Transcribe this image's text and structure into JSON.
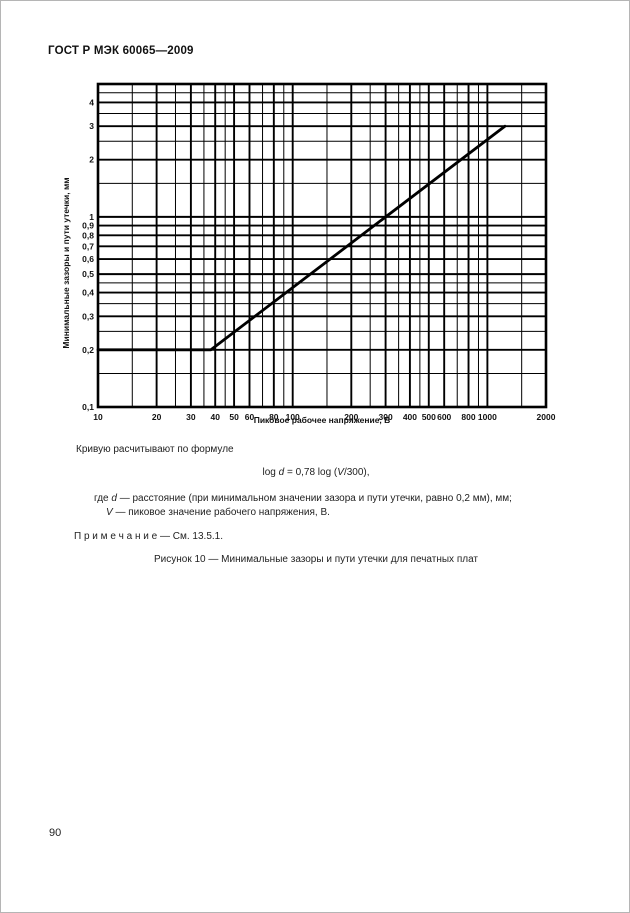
{
  "page": {
    "header": "ГОСТ Р МЭК 60065—2009",
    "page_number": "90"
  },
  "chart_data": {
    "type": "line",
    "title": "",
    "x_axis": {
      "label": "Пиковое рабочее напряжение, В",
      "scale": "log",
      "min": 10,
      "max": 2000,
      "ticks": [
        10,
        20,
        30,
        40,
        50,
        60,
        80,
        100,
        200,
        300,
        400,
        500,
        600,
        800,
        1000,
        2000
      ],
      "tick_labels": [
        "10",
        "20",
        "30",
        "40",
        "50",
        "60",
        "80",
        "100",
        "200",
        "300",
        "400",
        "500",
        "600",
        "800",
        "1000",
        "2000"
      ],
      "minor_gridlines": [
        15,
        25,
        35,
        45,
        70,
        90,
        150,
        250,
        350,
        450,
        700,
        900,
        1500
      ]
    },
    "y_axis": {
      "label": "Минимальные зазоры и пути утечки, мм",
      "scale": "log",
      "min": 0.1,
      "max": 5,
      "ticks": [
        0.1,
        0.2,
        0.3,
        0.4,
        0.5,
        0.6,
        0.7,
        0.8,
        0.9,
        1,
        2,
        3,
        4
      ],
      "tick_labels": [
        "0,1",
        "0,2",
        "0,3",
        "0,4",
        "0,5",
        "0,6",
        "0,7",
        "0,8",
        "0,9",
        "1",
        "2",
        "3",
        "4"
      ],
      "minor_gridlines": [
        0.15,
        0.25,
        0.35,
        0.45,
        1.5,
        2.5,
        3.5,
        4.5
      ]
    },
    "series": [
      {
        "name": "minimum-clearance-creepage-curve",
        "points": [
          [
            10,
            0.2
          ],
          [
            38,
            0.2
          ],
          [
            1230,
            3
          ]
        ]
      }
    ],
    "grid": "on",
    "legend": "none"
  },
  "body": {
    "intro": "Кривую расчитывают по формуле",
    "formula": {
      "p1": "log ",
      "d": "d",
      "p2": " = 0,78 log (",
      "v": "V",
      "p3": "/300),"
    },
    "where": {
      "line1_pre": "где ",
      "line1_var": "d",
      "line1_text": " — расстояние (при минимальном значении зазора и пути утечки, равно 0,2 мм), мм;",
      "line2_var": "V",
      "line2_text": " — пиковое значение рабочего напряжения, В."
    },
    "note": "П р и м е ч а н и е — См. 13.5.1.",
    "caption": "Рисунок 10 — Минимальные зазоры и пути утечки для печатных плат"
  }
}
